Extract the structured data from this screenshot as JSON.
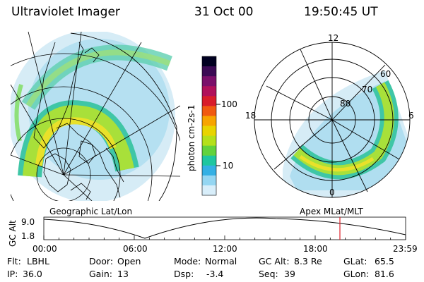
{
  "header": {
    "title": "Ultraviolet Imager",
    "date": "31 Oct 00",
    "time": "19:50:45 UT"
  },
  "colorbar": {
    "unit_label": "photon cm-2s-1",
    "ticks": [
      "100",
      "10"
    ],
    "colors": [
      "#000020",
      "#3b0a54",
      "#7a0f6a",
      "#b0105a",
      "#d81c2a",
      "#f05a10",
      "#f7a400",
      "#e8d400",
      "#b4e01a",
      "#62d23c",
      "#1fc6a0",
      "#34b0e4",
      "#94d6f2",
      "#d8eefa"
    ]
  },
  "left_map": {
    "label": "Geographic Lat/Lon"
  },
  "right_map": {
    "label": "Apex  MLat/MLT",
    "mlt_labels": {
      "top": "12",
      "left": "18",
      "right": "6",
      "bottom": "0"
    },
    "lat_labels": [
      "60",
      "70",
      "80"
    ]
  },
  "altitude_plot": {
    "ylabel": "GC Alt",
    "y_ticks": [
      "9.0",
      "1.8"
    ],
    "x_ticks": [
      "00:00",
      "06:00",
      "12:00",
      "18:00",
      "23:59"
    ],
    "marker_color": "#e0202a"
  },
  "footer": {
    "row1": [
      {
        "label": "Flt:",
        "value": "LBHL"
      },
      {
        "label": "Door:",
        "value": "Open"
      },
      {
        "label": "Mode:",
        "value": "Normal"
      },
      {
        "label": "GC Alt:",
        "value": "8.3 Re"
      },
      {
        "label": "GLat:",
        "value": "65.5"
      }
    ],
    "row2": [
      {
        "label": "IP:",
        "value": "36.0"
      },
      {
        "label": "Gain:",
        "value": "13"
      },
      {
        "label": "Dsp:",
        "value": "-3.4"
      },
      {
        "label": "Seq:",
        "value": "39"
      },
      {
        "label": "GLon:",
        "value": "81.6"
      }
    ]
  }
}
